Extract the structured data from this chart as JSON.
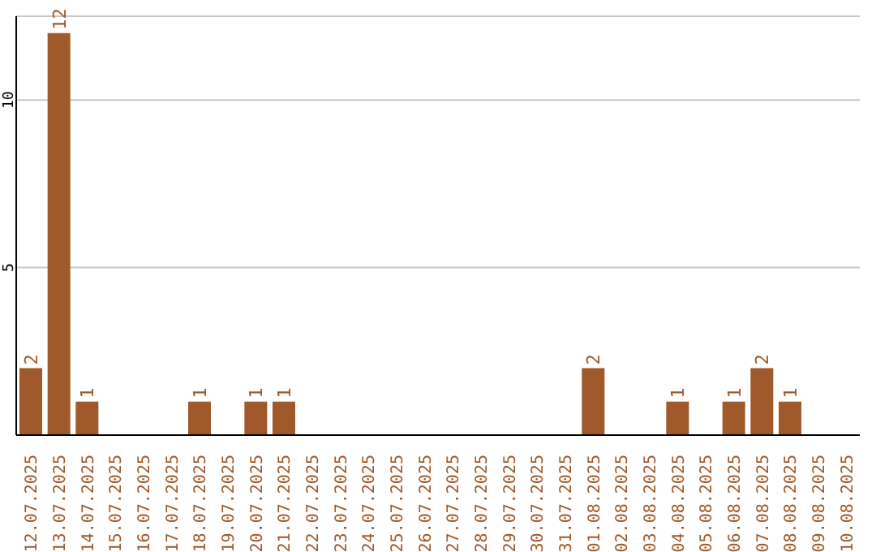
{
  "chart_data": {
    "type": "bar",
    "categories": [
      "12.07.2025",
      "13.07.2025",
      "14.07.2025",
      "15.07.2025",
      "16.07.2025",
      "17.07.2025",
      "18.07.2025",
      "19.07.2025",
      "20.07.2025",
      "21.07.2025",
      "22.07.2025",
      "23.07.2025",
      "24.07.2025",
      "25.07.2025",
      "26.07.2025",
      "27.07.2025",
      "28.07.2025",
      "29.07.2025",
      "30.07.2025",
      "31.07.2025",
      "01.08.2025",
      "02.08.2025",
      "03.08.2025",
      "04.08.2025",
      "05.08.2025",
      "06.08.2025",
      "07.08.2025",
      "08.08.2025",
      "09.08.2025",
      "10.08.2025"
    ],
    "values": [
      2,
      12,
      1,
      0,
      0,
      0,
      1,
      0,
      1,
      1,
      0,
      0,
      0,
      0,
      0,
      0,
      0,
      0,
      0,
      0,
      2,
      0,
      0,
      1,
      0,
      1,
      2,
      1,
      0,
      0
    ],
    "value_labels": [
      "2",
      "12",
      "1",
      null,
      null,
      null,
      "1",
      null,
      "1",
      "1",
      null,
      null,
      null,
      null,
      null,
      null,
      null,
      null,
      null,
      null,
      "2",
      null,
      null,
      "1",
      null,
      "1",
      "2",
      "1",
      null,
      null
    ],
    "color": "#a0592a",
    "ylim": [
      0,
      12.5
    ],
    "yticks": [
      5,
      10
    ],
    "grid": "y"
  }
}
